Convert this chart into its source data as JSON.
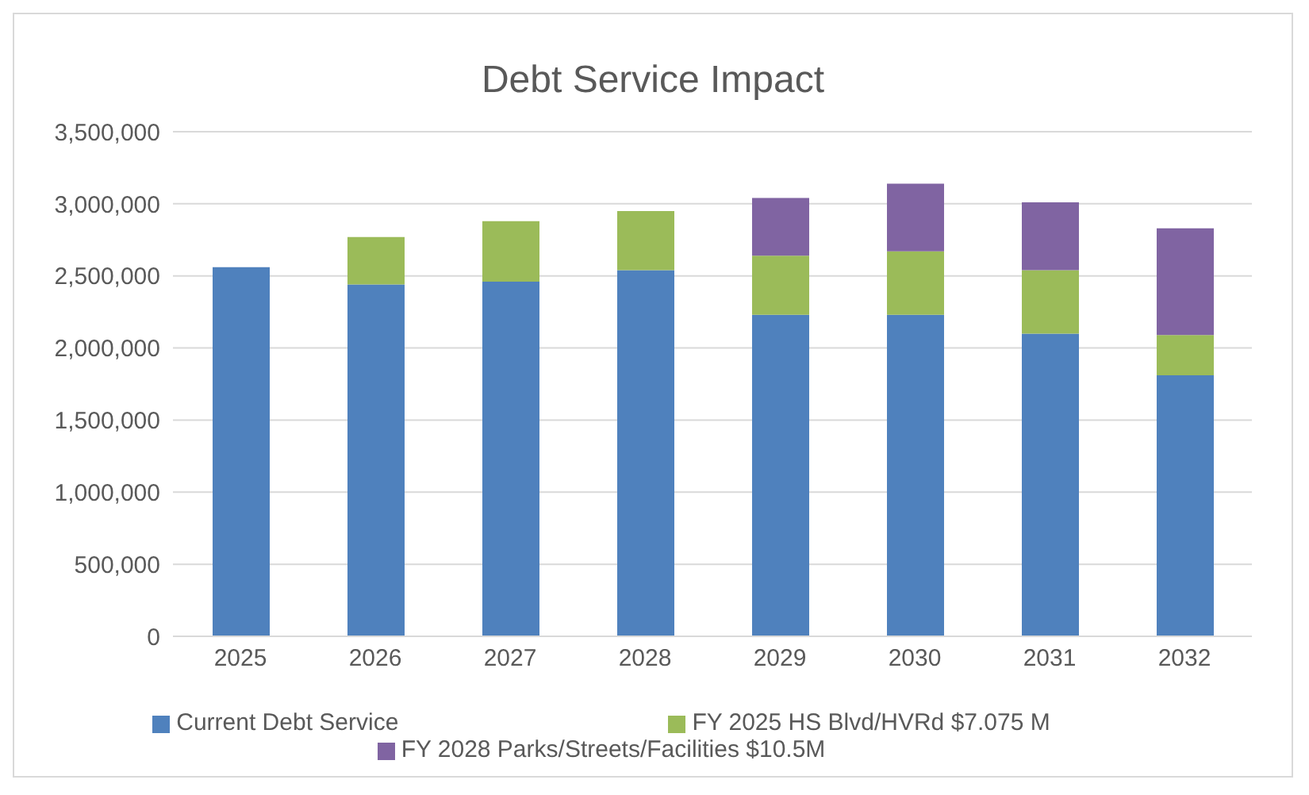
{
  "chart_data": {
    "type": "bar",
    "title": "Debt Service Impact",
    "stacked": true,
    "categories": [
      "2025",
      "2026",
      "2027",
      "2028",
      "2029",
      "2030",
      "2031",
      "2032"
    ],
    "series": [
      {
        "name": "Current Debt Service",
        "color": "#4f81bd",
        "values": [
          2560000,
          2440000,
          2460000,
          2540000,
          2230000,
          2230000,
          2100000,
          1810000
        ]
      },
      {
        "name": "FY 2025 HS Blvd/HVRd $7.075 M",
        "color": "#9bbb59",
        "values": [
          null,
          330000,
          420000,
          410000,
          410000,
          440000,
          440000,
          280000
        ]
      },
      {
        "name": "FY 2028 Parks/Streets/Facilities $10.5M",
        "color": "#8064a2",
        "values": [
          null,
          null,
          null,
          null,
          400000,
          470000,
          470000,
          740000
        ]
      }
    ],
    "ylim": [
      0,
      3500000
    ],
    "yticks": [
      0,
      {
        "value": 500000,
        "label": "500,000"
      },
      {
        "value": 1000000,
        "label": "1,000,000"
      },
      {
        "value": 1500000,
        "label": "1,500,000"
      },
      {
        "value": 2000000,
        "label": "2,000,000"
      },
      {
        "value": 2500000,
        "label": "2,500,000"
      },
      {
        "value": 3000000,
        "label": "3,000,000"
      },
      {
        "value": 3500000,
        "label": "3,500,000"
      }
    ],
    "grid": "y",
    "legend": "bottom"
  }
}
